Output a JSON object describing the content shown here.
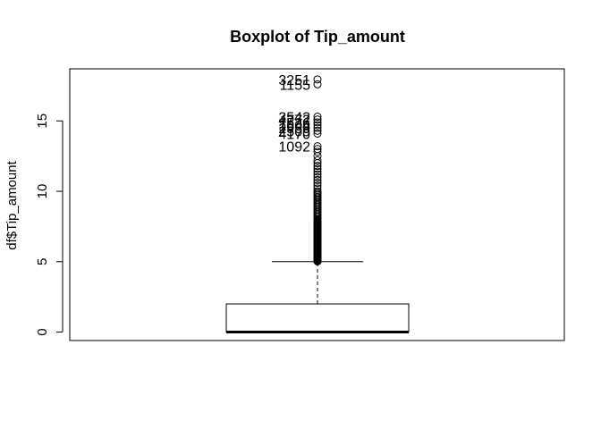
{
  "chart_data": {
    "type": "boxplot",
    "title": "Boxplot of Tip_amount",
    "xlabel": "",
    "ylabel": "df$Tip_amount",
    "ylim": [
      -0.6,
      18.7
    ],
    "yticks": [
      0,
      5,
      10,
      15
    ],
    "grid": false,
    "box": {
      "min": 0,
      "q1": 0,
      "median": 0,
      "q3": 2,
      "whisker_low": 0,
      "whisker_high": 5
    },
    "outliers": [
      5.02,
      5.05,
      5.1,
      5.15,
      5.2,
      5.25,
      5.3,
      5.35,
      5.4,
      5.45,
      5.5,
      5.55,
      5.6,
      5.65,
      5.7,
      5.75,
      5.8,
      5.85,
      5.9,
      5.95,
      6.0,
      6.05,
      6.1,
      6.15,
      6.2,
      6.25,
      6.3,
      6.35,
      6.4,
      6.45,
      6.5,
      6.55,
      6.6,
      6.65,
      6.7,
      6.75,
      6.8,
      6.85,
      6.9,
      6.95,
      7.0,
      7.05,
      7.1,
      7.15,
      7.2,
      7.25,
      7.3,
      7.35,
      7.4,
      7.45,
      7.5,
      7.55,
      7.6,
      7.65,
      7.7,
      7.75,
      7.8,
      7.85,
      7.9,
      7.95,
      8.0,
      8.1,
      8.2,
      8.3,
      8.4,
      8.5,
      8.6,
      8.7,
      8.8,
      8.9,
      9.0,
      9.1,
      9.2,
      9.3,
      9.4,
      9.5,
      9.6,
      9.7,
      9.8,
      9.9,
      10.0,
      10.2,
      10.4,
      10.6,
      10.8,
      11.0,
      11.2,
      11.4,
      11.6,
      11.8,
      12.0,
      12.2,
      12.5,
      12.8,
      13.0,
      13.2,
      14.1,
      14.3,
      14.5,
      14.7,
      14.9,
      15.1,
      15.3,
      17.6,
      17.95
    ],
    "outlier_labels": [
      {
        "label": "3251",
        "value": 17.95
      },
      {
        "label": "1155",
        "value": 17.6
      },
      {
        "label": "3542",
        "value": 15.3
      },
      {
        "label": "4772",
        "value": 15.1
      },
      {
        "label": "1526",
        "value": 14.9
      },
      {
        "label": "1604",
        "value": 14.7
      },
      {
        "label": "2939",
        "value": 14.5
      },
      {
        "label": "2509",
        "value": 14.3
      },
      {
        "label": "4170",
        "value": 14.1
      },
      {
        "label": "1092",
        "value": 13.2
      }
    ]
  }
}
